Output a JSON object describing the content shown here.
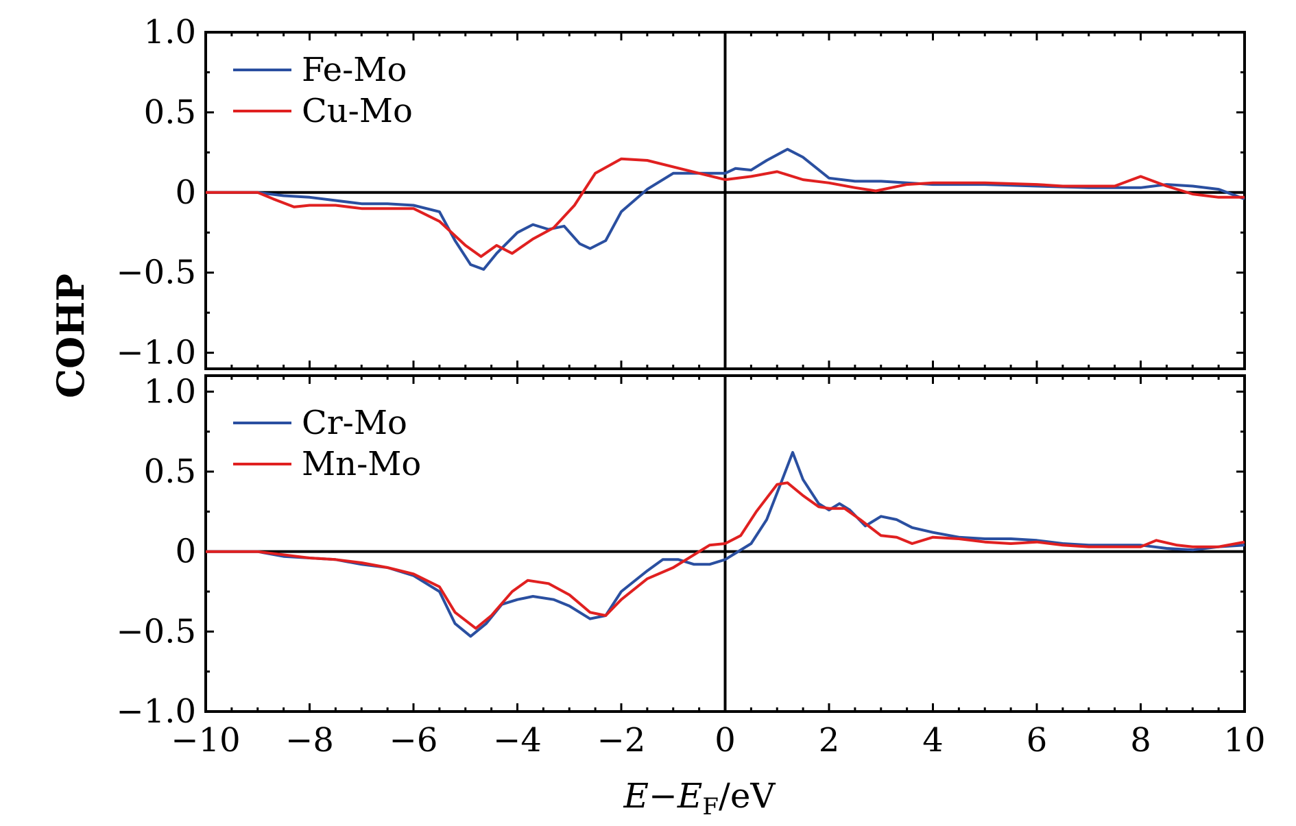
{
  "chart_data": {
    "type": "line",
    "ylabel": "COHP",
    "xlabel_parts": {
      "e": "E",
      "minus": "−",
      "ef": "E",
      "sub": "F",
      "unit": "/eV"
    },
    "xlim": [
      -10,
      10
    ],
    "xticks": [
      -10,
      -8,
      -6,
      -4,
      -2,
      0,
      2,
      4,
      6,
      8,
      10
    ],
    "xtick_labels": [
      "−10",
      "−8",
      "−6",
      "−4",
      "−2",
      "0",
      "2",
      "4",
      "6",
      "8",
      "10"
    ],
    "panels": [
      {
        "name": "top",
        "ylim": [
          -1.1,
          1.0
        ],
        "yticks": [
          1.0,
          0.5,
          0,
          -0.5,
          -1.0
        ],
        "ytick_labels": [
          "1.0",
          "0.5",
          "0",
          "−0.5",
          "−1.0"
        ],
        "series": [
          {
            "name": "Fe-Mo",
            "color": "#2a4fa0",
            "points": [
              [
                -10,
                0
              ],
              [
                -9,
                0
              ],
              [
                -8.5,
                -0.02
              ],
              [
                -8,
                -0.03
              ],
              [
                -7.5,
                -0.05
              ],
              [
                -7,
                -0.07
              ],
              [
                -6.5,
                -0.07
              ],
              [
                -6,
                -0.08
              ],
              [
                -5.5,
                -0.12
              ],
              [
                -5.2,
                -0.3
              ],
              [
                -4.9,
                -0.45
              ],
              [
                -4.65,
                -0.48
              ],
              [
                -4.4,
                -0.38
              ],
              [
                -4,
                -0.25
              ],
              [
                -3.7,
                -0.2
              ],
              [
                -3.4,
                -0.23
              ],
              [
                -3.1,
                -0.21
              ],
              [
                -2.8,
                -0.32
              ],
              [
                -2.6,
                -0.35
              ],
              [
                -2.3,
                -0.3
              ],
              [
                -2,
                -0.12
              ],
              [
                -1.5,
                0.02
              ],
              [
                -1,
                0.12
              ],
              [
                -0.5,
                0.12
              ],
              [
                0,
                0.12
              ],
              [
                0.2,
                0.15
              ],
              [
                0.5,
                0.14
              ],
              [
                0.8,
                0.2
              ],
              [
                1.2,
                0.27
              ],
              [
                1.5,
                0.22
              ],
              [
                2,
                0.09
              ],
              [
                2.5,
                0.07
              ],
              [
                3,
                0.07
              ],
              [
                4,
                0.05
              ],
              [
                5,
                0.05
              ],
              [
                6,
                0.04
              ],
              [
                7,
                0.03
              ],
              [
                8,
                0.03
              ],
              [
                8.5,
                0.05
              ],
              [
                9,
                0.04
              ],
              [
                9.5,
                0.02
              ],
              [
                10,
                -0.04
              ]
            ]
          },
          {
            "name": "Cu-Mo",
            "color": "#e02020",
            "points": [
              [
                -10,
                0
              ],
              [
                -9,
                0
              ],
              [
                -8.7,
                -0.04
              ],
              [
                -8.3,
                -0.09
              ],
              [
                -8,
                -0.08
              ],
              [
                -7.5,
                -0.08
              ],
              [
                -7,
                -0.1
              ],
              [
                -6.5,
                -0.1
              ],
              [
                -6,
                -0.1
              ],
              [
                -5.5,
                -0.18
              ],
              [
                -5,
                -0.33
              ],
              [
                -4.7,
                -0.4
              ],
              [
                -4.4,
                -0.33
              ],
              [
                -4.1,
                -0.38
              ],
              [
                -3.7,
                -0.29
              ],
              [
                -3.3,
                -0.22
              ],
              [
                -2.9,
                -0.08
              ],
              [
                -2.5,
                0.12
              ],
              [
                -2,
                0.21
              ],
              [
                -1.5,
                0.2
              ],
              [
                -1,
                0.16
              ],
              [
                -0.5,
                0.12
              ],
              [
                0,
                0.08
              ],
              [
                0.5,
                0.1
              ],
              [
                1,
                0.13
              ],
              [
                1.5,
                0.08
              ],
              [
                2,
                0.06
              ],
              [
                2.5,
                0.03
              ],
              [
                2.9,
                0.01
              ],
              [
                3.5,
                0.05
              ],
              [
                4,
                0.06
              ],
              [
                5,
                0.06
              ],
              [
                6,
                0.05
              ],
              [
                6.5,
                0.04
              ],
              [
                7,
                0.04
              ],
              [
                7.5,
                0.04
              ],
              [
                8,
                0.1
              ],
              [
                8.5,
                0.04
              ],
              [
                9,
                -0.01
              ],
              [
                9.5,
                -0.03
              ],
              [
                10,
                -0.03
              ]
            ]
          }
        ]
      },
      {
        "name": "bottom",
        "ylim": [
          -1.0,
          1.1
        ],
        "yticks": [
          1.0,
          0.5,
          0,
          -0.5,
          -1.0
        ],
        "ytick_labels": [
          "1.0",
          "0.5",
          "0",
          "−0.5",
          "−1.0"
        ],
        "series": [
          {
            "name": "Cr-Mo",
            "color": "#2a4fa0",
            "points": [
              [
                -10,
                0
              ],
              [
                -9,
                0
              ],
              [
                -8.5,
                -0.03
              ],
              [
                -8,
                -0.04
              ],
              [
                -7.5,
                -0.05
              ],
              [
                -7,
                -0.08
              ],
              [
                -6.5,
                -0.1
              ],
              [
                -6,
                -0.15
              ],
              [
                -5.5,
                -0.25
              ],
              [
                -5.2,
                -0.45
              ],
              [
                -4.9,
                -0.53
              ],
              [
                -4.6,
                -0.45
              ],
              [
                -4.3,
                -0.33
              ],
              [
                -4,
                -0.3
              ],
              [
                -3.7,
                -0.28
              ],
              [
                -3.3,
                -0.3
              ],
              [
                -3,
                -0.34
              ],
              [
                -2.6,
                -0.42
              ],
              [
                -2.3,
                -0.4
              ],
              [
                -2,
                -0.25
              ],
              [
                -1.5,
                -0.12
              ],
              [
                -1.2,
                -0.05
              ],
              [
                -0.9,
                -0.05
              ],
              [
                -0.6,
                -0.08
              ],
              [
                -0.3,
                -0.08
              ],
              [
                0,
                -0.05
              ],
              [
                0.5,
                0.05
              ],
              [
                0.8,
                0.2
              ],
              [
                1.1,
                0.45
              ],
              [
                1.3,
                0.62
              ],
              [
                1.5,
                0.45
              ],
              [
                1.8,
                0.3
              ],
              [
                2,
                0.26
              ],
              [
                2.2,
                0.3
              ],
              [
                2.4,
                0.26
              ],
              [
                2.7,
                0.16
              ],
              [
                3,
                0.22
              ],
              [
                3.3,
                0.2
              ],
              [
                3.6,
                0.15
              ],
              [
                4,
                0.12
              ],
              [
                4.5,
                0.09
              ],
              [
                5,
                0.08
              ],
              [
                5.5,
                0.08
              ],
              [
                6,
                0.07
              ],
              [
                6.5,
                0.05
              ],
              [
                7,
                0.04
              ],
              [
                7.5,
                0.04
              ],
              [
                8,
                0.04
              ],
              [
                8.5,
                0.02
              ],
              [
                9,
                0.01
              ],
              [
                9.5,
                0.03
              ],
              [
                10,
                0.04
              ]
            ]
          },
          {
            "name": "Mn-Mo",
            "color": "#e02020",
            "points": [
              [
                -10,
                0
              ],
              [
                -9,
                0
              ],
              [
                -8.5,
                -0.02
              ],
              [
                -8,
                -0.04
              ],
              [
                -7.5,
                -0.05
              ],
              [
                -7,
                -0.07
              ],
              [
                -6.5,
                -0.1
              ],
              [
                -6,
                -0.14
              ],
              [
                -5.5,
                -0.22
              ],
              [
                -5.2,
                -0.38
              ],
              [
                -4.8,
                -0.48
              ],
              [
                -4.5,
                -0.4
              ],
              [
                -4.1,
                -0.25
              ],
              [
                -3.8,
                -0.18
              ],
              [
                -3.4,
                -0.2
              ],
              [
                -3,
                -0.27
              ],
              [
                -2.6,
                -0.38
              ],
              [
                -2.3,
                -0.4
              ],
              [
                -2,
                -0.3
              ],
              [
                -1.5,
                -0.17
              ],
              [
                -1,
                -0.1
              ],
              [
                -0.6,
                -0.02
              ],
              [
                -0.3,
                0.04
              ],
              [
                0,
                0.05
              ],
              [
                0.3,
                0.1
              ],
              [
                0.6,
                0.25
              ],
              [
                1,
                0.42
              ],
              [
                1.2,
                0.43
              ],
              [
                1.5,
                0.35
              ],
              [
                1.8,
                0.28
              ],
              [
                2,
                0.27
              ],
              [
                2.3,
                0.27
              ],
              [
                2.6,
                0.2
              ],
              [
                3,
                0.1
              ],
              [
                3.3,
                0.09
              ],
              [
                3.6,
                0.05
              ],
              [
                4,
                0.09
              ],
              [
                4.5,
                0.08
              ],
              [
                5,
                0.06
              ],
              [
                5.5,
                0.05
              ],
              [
                6,
                0.06
              ],
              [
                6.5,
                0.04
              ],
              [
                7,
                0.03
              ],
              [
                7.5,
                0.03
              ],
              [
                8,
                0.03
              ],
              [
                8.3,
                0.07
              ],
              [
                8.7,
                0.04
              ],
              [
                9,
                0.03
              ],
              [
                9.5,
                0.03
              ],
              [
                10,
                0.06
              ]
            ]
          }
        ]
      }
    ]
  }
}
